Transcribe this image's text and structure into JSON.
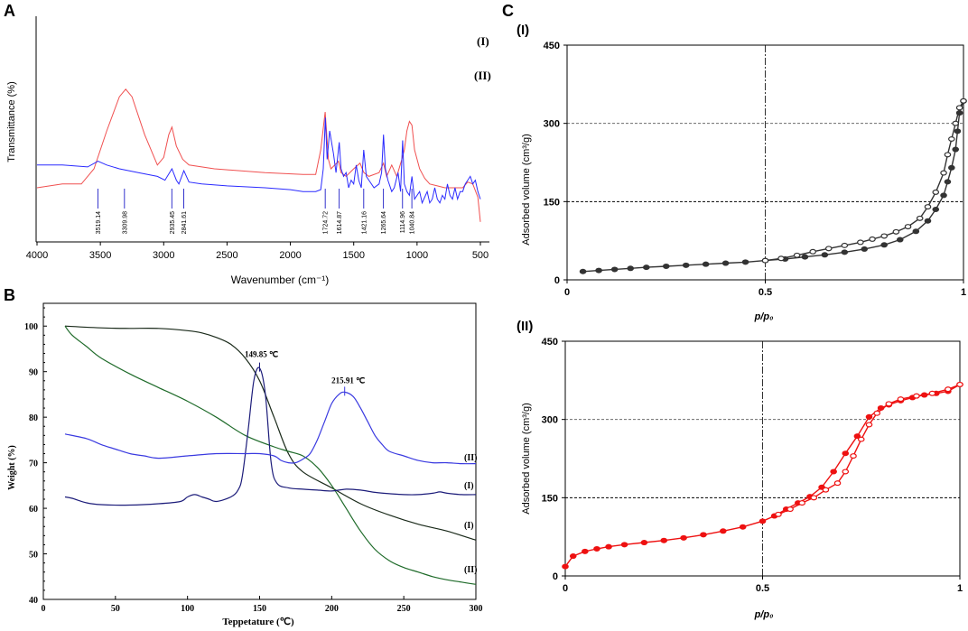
{
  "chart_data": [
    {
      "panel_label": "A",
      "type": "line",
      "xlabel": "Wavenumber (cm⁻¹)",
      "ylabel": "Transmittance (%)",
      "xlim": [
        4000,
        500
      ],
      "x_ticks": [
        "4000",
        "3500",
        "3000",
        "2500",
        "2000",
        "1500",
        "1000",
        "500"
      ],
      "peak_labels": [
        "3519.14",
        "3309.98",
        "2935.45",
        "2841.61",
        "1724.72",
        "1614.87",
        "1421.16",
        "1265.64",
        "1114.96",
        "1040.84"
      ],
      "peak_positions": [
        3519.14,
        3309.98,
        2935.45,
        2841.61,
        1724.72,
        1614.87,
        1421.16,
        1265.64,
        1114.96,
        1040.84
      ],
      "series": [
        {
          "name": "(I)",
          "color": "#f05050",
          "x": [
            4000,
            3800,
            3650,
            3550,
            3450,
            3350,
            3300,
            3250,
            3150,
            3050,
            3000,
            2960,
            2935,
            2900,
            2850,
            2800,
            2600,
            2200,
            1900,
            1800,
            1760,
            1725,
            1700,
            1680,
            1620,
            1600,
            1560,
            1500,
            1450,
            1420,
            1380,
            1300,
            1265,
            1240,
            1200,
            1160,
            1120,
            1100,
            1080,
            1060,
            1040,
            1020,
            980,
            940,
            900,
            840,
            780,
            700,
            640,
            600,
            560,
            520,
            500
          ],
          "y": [
            20,
            22,
            22,
            30,
            50,
            68,
            72,
            68,
            48,
            32,
            36,
            48,
            52,
            42,
            35,
            32,
            30,
            28,
            27,
            27,
            40,
            60,
            35,
            30,
            34,
            28,
            26,
            30,
            33,
            28,
            26,
            28,
            33,
            26,
            32,
            26,
            35,
            40,
            50,
            55,
            53,
            40,
            30,
            25,
            22,
            21,
            20,
            20,
            20,
            23,
            22,
            15,
            2
          ]
        },
        {
          "name": "(II)",
          "color": "#2a2aff",
          "x": [
            4000,
            3800,
            3600,
            3519,
            3450,
            3350,
            3200,
            3050,
            2990,
            2935,
            2900,
            2880,
            2841,
            2800,
            2700,
            2500,
            2200,
            2000,
            1900,
            1800,
            1760,
            1740,
            1724,
            1710,
            1690,
            1660,
            1640,
            1614,
            1600,
            1580,
            1560,
            1540,
            1520,
            1500,
            1480,
            1460,
            1440,
            1421,
            1400,
            1380,
            1340,
            1300,
            1280,
            1265,
            1250,
            1230,
            1200,
            1180,
            1150,
            1130,
            1114,
            1100,
            1080,
            1060,
            1040,
            1020,
            1000,
            980,
            960,
            940,
            920,
            900,
            880,
            860,
            840,
            820,
            800,
            780,
            760,
            740,
            720,
            700,
            680,
            660,
            640,
            620,
            600,
            580,
            560,
            540,
            520,
            500
          ],
          "y": [
            32,
            32,
            31,
            34,
            32,
            30,
            28,
            26,
            24,
            30,
            24,
            22,
            29,
            23,
            22,
            21,
            20,
            19,
            18,
            18,
            19,
            30,
            57,
            35,
            50,
            38,
            28,
            44,
            30,
            26,
            28,
            20,
            24,
            22,
            32,
            24,
            20,
            40,
            26,
            24,
            20,
            22,
            28,
            48,
            30,
            24,
            18,
            20,
            28,
            18,
            45,
            22,
            18,
            16,
            26,
            14,
            16,
            18,
            12,
            15,
            18,
            12,
            14,
            20,
            14,
            12,
            16,
            14,
            22,
            16,
            14,
            20,
            14,
            18,
            18,
            22,
            24,
            26,
            22,
            24,
            18,
            14
          ]
        }
      ],
      "series_labels": [
        "(I)",
        "(II)"
      ]
    },
    {
      "panel_label": "B",
      "type": "line",
      "xlabel": "Teppetature (℃)",
      "ylabel": "Weight (%)",
      "xlim": [
        0,
        300
      ],
      "ylim": [
        40,
        105
      ],
      "x_ticks": [
        "0",
        "50",
        "100",
        "150",
        "200",
        "250",
        "300"
      ],
      "y_ticks": [
        "40",
        "50",
        "60",
        "70",
        "80",
        "90",
        "100"
      ],
      "annotations": [
        "149.85 ℃",
        "215.91 ℃"
      ],
      "annotation_points": [
        [
          150,
          90.8
        ],
        [
          209,
          85.5
        ]
      ],
      "series": [
        {
          "name": "(I)",
          "role": "TGA weight loss",
          "color": "#1a2a1a",
          "x": [
            15,
            40,
            60,
            80,
            100,
            110,
            120,
            130,
            140,
            150,
            160,
            170,
            180,
            200,
            220,
            240,
            260,
            280,
            300
          ],
          "y": [
            100,
            99.6,
            99.5,
            99.5,
            99,
            98.5,
            97.5,
            96,
            93,
            88,
            80,
            72,
            68,
            64.5,
            61,
            58.5,
            56.5,
            55,
            53
          ]
        },
        {
          "name": "(II)",
          "role": "TGA weight loss",
          "color": "#1f6b2a",
          "x": [
            15,
            20,
            30,
            40,
            60,
            80,
            100,
            120,
            140,
            160,
            170,
            180,
            190,
            200,
            210,
            220,
            230,
            240,
            250,
            260,
            270,
            280,
            290,
            300
          ],
          "y": [
            100,
            98,
            95.5,
            93,
            89.5,
            86.5,
            83.5,
            80,
            76,
            73.5,
            72.5,
            71.5,
            69,
            65,
            60,
            55,
            51,
            48.5,
            47,
            46,
            45,
            44.3,
            43.8,
            43.3
          ]
        },
        {
          "name": "(I)",
          "role": "DTG/DSC",
          "color": "#1c1c7a",
          "x": [
            15,
            20,
            30,
            40,
            60,
            80,
            95,
            100,
            105,
            110,
            115,
            120,
            130,
            135,
            138,
            142,
            146,
            150,
            154,
            158,
            162,
            170,
            180,
            190,
            200,
            210,
            220,
            230,
            240,
            250,
            260,
            270,
            275,
            280,
            290,
            300
          ],
          "y": [
            62.5,
            62.2,
            61.2,
            60.8,
            60.7,
            61,
            61.5,
            62.5,
            63,
            62.5,
            62,
            61.5,
            62.5,
            64,
            67,
            77,
            88,
            90.8,
            85,
            70,
            65.5,
            64.5,
            64.2,
            64,
            63.8,
            64.2,
            64,
            63.5,
            63.2,
            63,
            63,
            63.3,
            63.6,
            63.3,
            63,
            63
          ]
        },
        {
          "name": "(II)",
          "role": "DTG/DSC",
          "color": "#3a3ae0",
          "x": [
            15,
            30,
            40,
            50,
            60,
            70,
            80,
            100,
            120,
            140,
            150,
            160,
            165,
            170,
            175,
            180,
            185,
            190,
            195,
            200,
            205,
            209,
            215,
            220,
            225,
            230,
            235,
            240,
            250,
            260,
            270,
            280,
            290,
            300
          ],
          "y": [
            76.3,
            75.3,
            74,
            73,
            72,
            71.5,
            71,
            71.5,
            72,
            72,
            72,
            71.5,
            70.5,
            70,
            70,
            70.8,
            72,
            75,
            79,
            83,
            85,
            85.5,
            84.5,
            82,
            79,
            76,
            74,
            72.5,
            71.5,
            70.5,
            70,
            70,
            69.8,
            69.8
          ]
        }
      ],
      "series_labels": [
        "(II)",
        "(I)",
        "(I)",
        "(II)"
      ]
    },
    {
      "panel_label": "C",
      "subpanel": "(I)",
      "type": "line",
      "xlabel": "p/p₀",
      "ylabel": "Adsorbed volume (cm³/g)",
      "xlim": [
        0,
        1
      ],
      "ylim": [
        0,
        450
      ],
      "x_ticks": [
        "0",
        "0.5",
        "1"
      ],
      "y_ticks": [
        "0",
        "150",
        "300",
        "450"
      ],
      "color": "#333333",
      "series": [
        {
          "name": "adsorption",
          "x": [
            0.04,
            0.08,
            0.12,
            0.16,
            0.2,
            0.25,
            0.3,
            0.35,
            0.4,
            0.45,
            0.5,
            0.55,
            0.6,
            0.65,
            0.7,
            0.75,
            0.8,
            0.84,
            0.88,
            0.91,
            0.93,
            0.95,
            0.96,
            0.97,
            0.98,
            0.985,
            0.99,
            1.0
          ],
          "y": [
            16,
            18,
            20,
            22,
            24,
            26,
            28,
            30,
            32,
            34,
            37,
            40,
            44,
            48,
            53,
            59,
            67,
            77,
            93,
            113,
            135,
            162,
            188,
            215,
            250,
            285,
            320,
            343
          ]
        },
        {
          "name": "desorption",
          "x": [
            1.0,
            0.99,
            0.98,
            0.97,
            0.96,
            0.95,
            0.93,
            0.91,
            0.89,
            0.86,
            0.83,
            0.8,
            0.77,
            0.74,
            0.7,
            0.66,
            0.62,
            0.58,
            0.54,
            0.5
          ],
          "y": [
            343,
            330,
            300,
            270,
            240,
            205,
            168,
            140,
            118,
            102,
            92,
            84,
            78,
            72,
            66,
            60,
            54,
            47,
            41,
            37
          ]
        }
      ]
    },
    {
      "panel_label": "C",
      "subpanel": "(II)",
      "type": "line",
      "xlabel": "p/p₀",
      "ylabel": "Adsorbed volume (cm³/g)",
      "xlim": [
        0,
        1
      ],
      "ylim": [
        0,
        450
      ],
      "x_ticks": [
        "0",
        "0.5",
        "1"
      ],
      "y_ticks": [
        "0",
        "150",
        "300",
        "450"
      ],
      "color": "#ee1111",
      "series": [
        {
          "name": "adsorption",
          "x": [
            0.0,
            0.02,
            0.05,
            0.08,
            0.11,
            0.15,
            0.2,
            0.25,
            0.3,
            0.35,
            0.4,
            0.45,
            0.5,
            0.53,
            0.56,
            0.59,
            0.62,
            0.65,
            0.68,
            0.71,
            0.74,
            0.77,
            0.8,
            0.82,
            0.85,
            0.88,
            0.91,
            0.94,
            0.97,
            1.0
          ],
          "y": [
            18,
            38,
            47,
            52,
            56,
            60,
            64,
            68,
            73,
            79,
            86,
            94,
            105,
            115,
            128,
            140,
            152,
            170,
            200,
            235,
            268,
            305,
            322,
            328,
            336,
            342,
            347,
            350,
            354,
            367
          ]
        },
        {
          "name": "desorption",
          "x": [
            1.0,
            0.97,
            0.93,
            0.89,
            0.85,
            0.82,
            0.79,
            0.77,
            0.75,
            0.73,
            0.71,
            0.69,
            0.66,
            0.63,
            0.6,
            0.57,
            0.54
          ],
          "y": [
            367,
            358,
            350,
            345,
            339,
            330,
            312,
            290,
            262,
            230,
            200,
            178,
            165,
            150,
            140,
            128,
            118
          ]
        }
      ]
    }
  ]
}
